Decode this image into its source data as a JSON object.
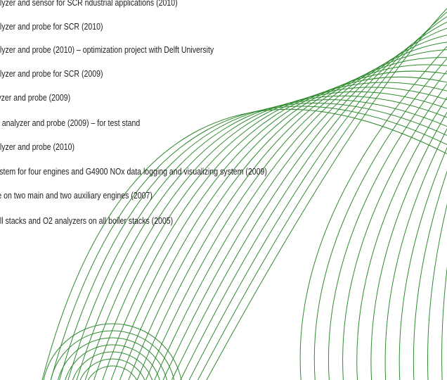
{
  "reference_list": {
    "items": [
      "alyzer and sensor for SCR ndustrial applications (2010)",
      "alyzer and probe for SCR (2010)",
      "alyzer and probe (2010) – optimization project with Delft University",
      "alyzer and probe for SCR (2009)",
      "lyzer and probe (2009)",
      "2 analyzer and probe (2009) – for test stand",
      "alyzer and probe (2010)",
      "ystem for four engines and G4900 NOx data logging and visualizing system (2009)",
      "le on two main and two auxiliary engines (2007)",
      "all stacks and O2 analyzers on all boiler stacks (2005)"
    ]
  },
  "colors": {
    "arc_stroke": "#2e8b2e",
    "text": "#222222",
    "background": "#ffffff"
  }
}
